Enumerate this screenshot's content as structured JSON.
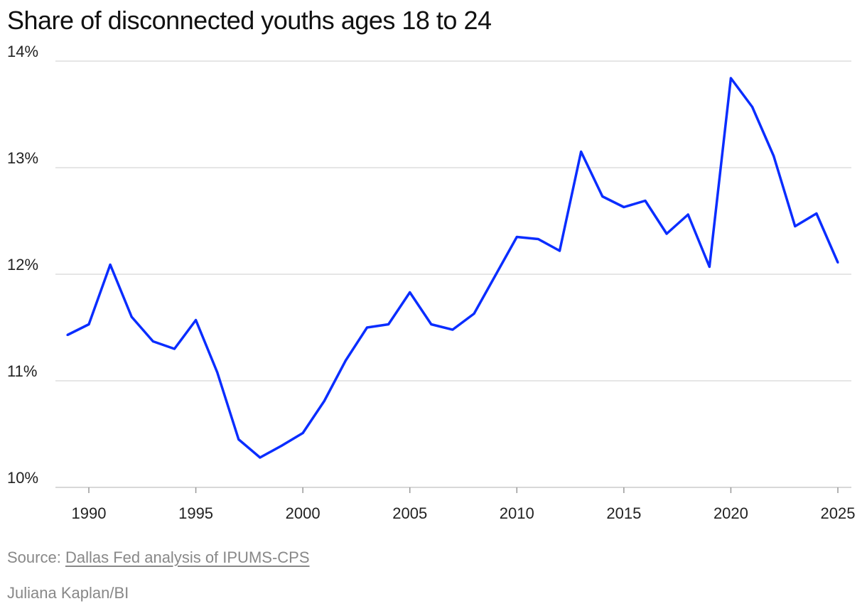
{
  "chart_data": {
    "type": "line",
    "title": "Share of disconnected youths ages 18 to 24",
    "xlabel": "",
    "ylabel": "",
    "ylim": [
      10,
      14
    ],
    "xlim": [
      1989,
      2025
    ],
    "grid": true,
    "y_ticks": [
      "10%",
      "11%",
      "12%",
      "13%",
      "14%"
    ],
    "y_tick_values": [
      10,
      11,
      12,
      13,
      14
    ],
    "x_ticks": [
      "1990",
      "1995",
      "2000",
      "2005",
      "2010",
      "2015",
      "2020",
      "2025"
    ],
    "x_tick_values": [
      1990,
      1995,
      2000,
      2005,
      2010,
      2015,
      2020,
      2025
    ],
    "series": [
      {
        "name": "Share of disconnected youths",
        "color": "#0a2dff",
        "x": [
          1989,
          1990,
          1991,
          1992,
          1993,
          1994,
          1995,
          1996,
          1997,
          1998,
          1999,
          2000,
          2001,
          2002,
          2003,
          2004,
          2005,
          2006,
          2007,
          2008,
          2009,
          2010,
          2011,
          2012,
          2013,
          2014,
          2015,
          2016,
          2017,
          2018,
          2019,
          2020,
          2021,
          2022,
          2023,
          2024,
          2025
        ],
        "values": [
          11.43,
          11.53,
          12.09,
          11.6,
          11.37,
          11.3,
          11.57,
          11.08,
          10.45,
          10.28,
          10.39,
          10.51,
          10.81,
          11.19,
          11.5,
          11.53,
          11.83,
          11.53,
          11.48,
          11.63,
          11.99,
          12.35,
          12.33,
          12.22,
          13.15,
          12.73,
          12.63,
          12.69,
          12.38,
          12.56,
          12.07,
          13.84,
          13.57,
          13.11,
          12.45,
          12.57,
          12.11
        ]
      }
    ]
  },
  "source": {
    "label": "Source:",
    "link_text": "Dallas Fed analysis of IPUMS-CPS"
  },
  "byline": "Juliana Kaplan/BI"
}
